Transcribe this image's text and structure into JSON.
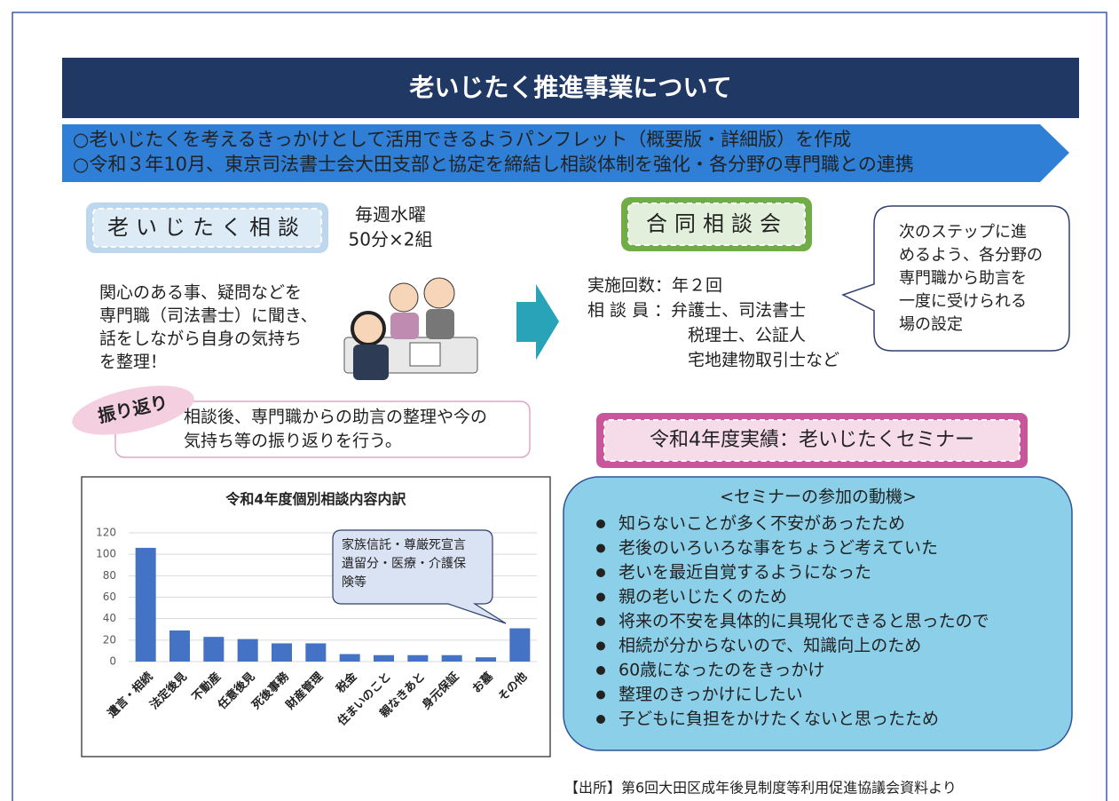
{
  "header": {
    "title": "老いじたく推進事業について"
  },
  "summary": [
    "○老いじたくを考えるきっかけとして活用できるようパンフレット（概要版・詳細版）を作成",
    "○令和３年10月、東京司法書士会大田支部と協定を締結し相談体制を強化・各分野の専門職との連携"
  ],
  "consult": {
    "label": "老いじたく相談",
    "schedule": [
      "毎週水曜",
      "50分×2組"
    ],
    "description": [
      "関心のある事、疑問などを",
      "専門職（司法書士）に聞き、",
      "話をしながら自身の気持ち",
      "を整理！"
    ]
  },
  "reflection": {
    "label": "振り返り",
    "text": [
      "相談後、専門職からの助言の整理や今の",
      "気持ち等の振り返りを行う。"
    ]
  },
  "joint": {
    "label": "合同相談会",
    "details": [
      "実施回数：年２回",
      "相 談 員 ：弁護士、司法書士",
      "税理士、公証人",
      "宅地建物取引士など"
    ],
    "note": [
      "次のステップに進",
      "めるよう、各分野の",
      "専門職から助言を",
      "一度に受けられる",
      "場の設定"
    ]
  },
  "seminar": {
    "label": "令和4年度実績：老いじたくセミナー",
    "heading": "<セミナーの参加の動機>",
    "items": [
      "知らないことが多く不安があったため",
      "老後のいろいろな事をちょうど考えていた",
      "老いを最近自覚するようになった",
      "親の老いじたくのため",
      "将来の不安を具体的に具現化できると思ったので",
      "相続が分からないので、知識向上のため",
      "60歳になったのをきっかけ",
      "整理のきっかけにしたい",
      "子どもに負担をかけたくないと思ったため"
    ]
  },
  "chart_data": {
    "type": "bar",
    "title": "令和4年度個別相談内容内訳",
    "categories": [
      "遺言・相続",
      "法定後見",
      "不動産",
      "任意後見",
      "死後事務",
      "財産管理",
      "税金",
      "住まいのこと",
      "親なきあと",
      "身元保証",
      "お墓",
      "その他"
    ],
    "values": [
      106,
      29,
      23,
      21,
      17,
      17,
      7,
      6,
      6,
      6,
      4,
      31
    ],
    "color": "#4472c4",
    "ylim": [
      0,
      120
    ],
    "yticks": [
      0,
      20,
      40,
      60,
      80,
      100,
      120
    ],
    "grid": true,
    "annotation": [
      "家族信託・尊厳死宣言",
      "遺留分・医療・介護保",
      "険等"
    ]
  },
  "source": "【出所】第6回大田区成年後見制度等利用促進協議会資料より"
}
